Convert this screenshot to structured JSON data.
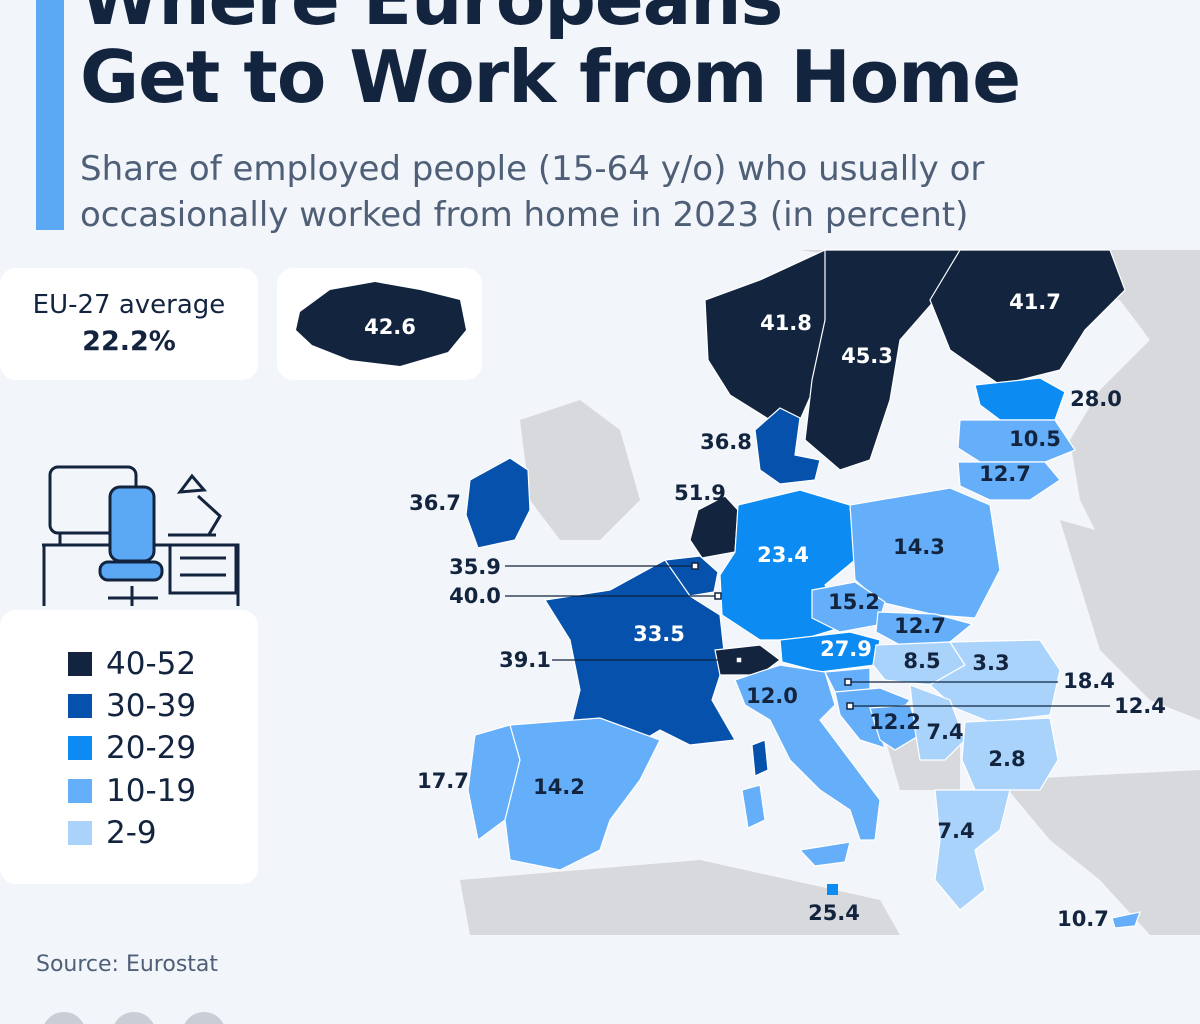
{
  "header": {
    "title_line1": "Where Europeans",
    "title_line2": "Get to Work from Home",
    "subtitle": "Share of employed people (15-64 y/o) who usually or occasionally worked from home in 2023 (in percent)"
  },
  "eu_average": {
    "label": "EU-27 average",
    "value": "22.2%"
  },
  "legend": [
    {
      "label": "40-52",
      "color": "#13243f"
    },
    {
      "label": "30-39",
      "color": "#0551ab"
    },
    {
      "label": "20-29",
      "color": "#0c8cf3"
    },
    {
      "label": "10-19",
      "color": "#65aefa"
    },
    {
      "label": "2-9",
      "color": "#a9d3fb"
    }
  ],
  "colors": {
    "background": "#f2f5f9",
    "accent": "#5ba8f5",
    "non_eu_land": "#d7d9dc"
  },
  "map": {
    "countries": [
      {
        "name": "Iceland",
        "value": "42.6"
      },
      {
        "name": "Norway",
        "value": "41.8"
      },
      {
        "name": "Sweden",
        "value": "45.3"
      },
      {
        "name": "Finland",
        "value": "41.7"
      },
      {
        "name": "Estonia",
        "value": "28.0"
      },
      {
        "name": "Latvia",
        "value": "10.5"
      },
      {
        "name": "Lithuania",
        "value": "12.7"
      },
      {
        "name": "Denmark",
        "value": "36.8"
      },
      {
        "name": "Ireland",
        "value": "36.7"
      },
      {
        "name": "Netherlands",
        "value": "51.9"
      },
      {
        "name": "Belgium",
        "value": "35.9"
      },
      {
        "name": "Luxembourg",
        "value": "40.0"
      },
      {
        "name": "Germany",
        "value": "23.4"
      },
      {
        "name": "Poland",
        "value": "14.3"
      },
      {
        "name": "Czechia",
        "value": "15.2"
      },
      {
        "name": "Slovakia",
        "value": "12.7"
      },
      {
        "name": "France",
        "value": "33.5"
      },
      {
        "name": "Switzerland",
        "value": "39.1"
      },
      {
        "name": "Austria",
        "value": "27.9"
      },
      {
        "name": "Hungary",
        "value": "8.5"
      },
      {
        "name": "Romania",
        "value": "3.3"
      },
      {
        "name": "Slovenia",
        "value": "18.4"
      },
      {
        "name": "Croatia",
        "value": "12.4"
      },
      {
        "name": "Italy",
        "value": "12.0"
      },
      {
        "name": "Bosnia and Herzegovina",
        "value": "12.2"
      },
      {
        "name": "Serbia",
        "value": "7.4"
      },
      {
        "name": "Bulgaria",
        "value": "2.8"
      },
      {
        "name": "Portugal",
        "value": "17.7"
      },
      {
        "name": "Spain",
        "value": "14.2"
      },
      {
        "name": "Greece",
        "value": "7.4"
      },
      {
        "name": "Malta",
        "value": "25.4"
      },
      {
        "name": "Cyprus",
        "value": "10.7"
      }
    ]
  },
  "source": "Source: Eurostat"
}
